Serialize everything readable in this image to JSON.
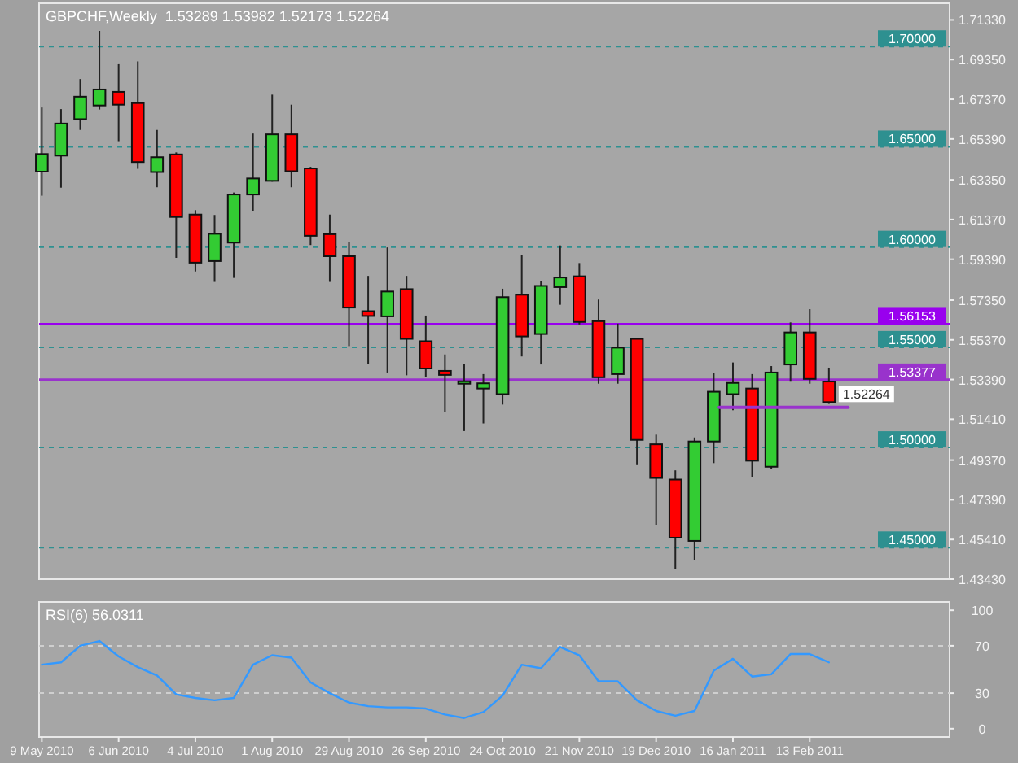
{
  "chart_data": [
    {
      "type": "candlestick",
      "title": "GBPCHF,Weekly  1.53289 1.53982 1.52173 1.52264",
      "x": [
        "2010-05-09",
        "2010-05-16",
        "2010-05-23",
        "2010-05-30",
        "2010-06-06",
        "2010-06-13",
        "2010-06-20",
        "2010-06-27",
        "2010-07-04",
        "2010-07-11",
        "2010-07-18",
        "2010-07-25",
        "2010-08-01",
        "2010-08-08",
        "2010-08-15",
        "2010-08-22",
        "2010-08-29",
        "2010-09-05",
        "2010-09-12",
        "2010-09-19",
        "2010-09-26",
        "2010-10-03",
        "2010-10-10",
        "2010-10-17",
        "2010-10-24",
        "2010-10-31",
        "2010-11-07",
        "2010-11-14",
        "2010-11-21",
        "2010-11-28",
        "2010-12-05",
        "2010-12-12",
        "2010-12-19",
        "2010-12-26",
        "2011-01-02",
        "2011-01-09",
        "2011-01-16",
        "2011-01-23",
        "2011-01-30",
        "2011-02-06",
        "2011-02-13",
        "2011-02-20"
      ],
      "ohlc": [
        [
          1.6376,
          1.6696,
          1.6256,
          1.6464
        ],
        [
          1.6456,
          1.6688,
          1.6296,
          1.6616
        ],
        [
          1.6638,
          1.6838,
          1.6584,
          1.675
        ],
        [
          1.6706,
          1.7078,
          1.6686,
          1.6786
        ],
        [
          1.6774,
          1.6912,
          1.6528,
          1.671
        ],
        [
          1.6718,
          1.6926,
          1.639,
          1.6424
        ],
        [
          1.6374,
          1.6584,
          1.6298,
          1.6448
        ],
        [
          1.6462,
          1.6472,
          1.5946,
          1.615
        ],
        [
          1.6162,
          1.6184,
          1.5878,
          1.5922
        ],
        [
          1.593,
          1.616,
          1.5826,
          1.6066
        ],
        [
          1.6022,
          1.6272,
          1.5846,
          1.6262
        ],
        [
          1.6262,
          1.6566,
          1.6178,
          1.6342
        ],
        [
          1.633,
          1.676,
          1.6326,
          1.6562
        ],
        [
          1.6562,
          1.671,
          1.6298,
          1.6378
        ],
        [
          1.6392,
          1.64,
          1.601,
          1.6056
        ],
        [
          1.6064,
          1.6162,
          1.5826,
          1.5954
        ],
        [
          1.5954,
          1.6024,
          1.5506,
          1.5698
        ],
        [
          1.568,
          1.5856,
          1.5418,
          1.5656
        ],
        [
          1.5654,
          1.5998,
          1.5374,
          1.5778
        ],
        [
          1.579,
          1.5856,
          1.536,
          1.5542
        ],
        [
          1.553,
          1.5658,
          1.5352,
          1.5394
        ],
        [
          1.5382,
          1.5464,
          1.5178,
          1.5362
        ],
        [
          1.5318,
          1.5418,
          1.5082,
          1.533
        ],
        [
          1.5294,
          1.5366,
          1.512,
          1.532
        ],
        [
          1.5266,
          1.5792,
          1.5214,
          1.575
        ],
        [
          1.5762,
          1.596,
          1.5454,
          1.5554
        ],
        [
          1.5566,
          1.5832,
          1.5414,
          1.5806
        ],
        [
          1.58,
          1.6008,
          1.5712,
          1.5848
        ],
        [
          1.5854,
          1.592,
          1.5614,
          1.5626
        ],
        [
          1.563,
          1.5738,
          1.5318,
          1.535
        ],
        [
          1.5366,
          1.5618,
          1.5318,
          1.5498
        ],
        [
          1.5542,
          1.5542,
          1.4912,
          1.5038
        ],
        [
          1.5016,
          1.5064,
          1.4614,
          1.4848
        ],
        [
          1.484,
          1.4886,
          1.4392,
          1.455
        ],
        [
          1.4534,
          1.505,
          1.4438,
          1.503
        ],
        [
          1.503,
          1.537,
          1.4922,
          1.5278
        ],
        [
          1.5266,
          1.5424,
          1.5186,
          1.5322
        ],
        [
          1.5294,
          1.5366,
          1.4854,
          1.4934
        ],
        [
          1.4904,
          1.5406,
          1.4894,
          1.5374
        ],
        [
          1.5414,
          1.5624,
          1.5328,
          1.5574
        ],
        [
          1.5574,
          1.569,
          1.5318,
          1.5342
        ],
        [
          1.53289,
          1.53982,
          1.52173,
          1.52264
        ]
      ],
      "colors": [
        "#33cc33",
        "#33cc33",
        "#33cc33",
        "#33cc33",
        "#ff0000",
        "#ff0000",
        "#33cc33",
        "#ff0000",
        "#ff0000",
        "#33cc33",
        "#33cc33",
        "#33cc33",
        "#33cc33",
        "#ff0000",
        "#ff0000",
        "#ff0000",
        "#ff0000",
        "#ff0000",
        "#33cc33",
        "#ff0000",
        "#ff0000",
        "#ff0000",
        "#33cc33",
        "#33cc33",
        "#33cc33",
        "#ff0000",
        "#33cc33",
        "#33cc33",
        "#ff0000",
        "#ff0000",
        "#33cc33",
        "#ff0000",
        "#ff0000",
        "#ff0000",
        "#33cc33",
        "#33cc33",
        "#33cc33",
        "#ff0000",
        "#33cc33",
        "#33cc33",
        "#ff0000",
        "#ff0000"
      ],
      "series": [
        {
          "type": "line",
          "x": [
            "2011-01-11",
            "2011-02-27"
          ],
          "values": [
            1.52,
            1.52
          ],
          "color": "#9933cc"
        }
      ],
      "xlim": [
        "2010-05-08",
        "2011-04-05"
      ],
      "ylim": [
        1.4343,
        1.7216
      ],
      "yticks": [
        {
          "value": 1.7133,
          "label": "1.71330"
        },
        {
          "value": 1.6935,
          "label": "1.69350"
        },
        {
          "value": 1.6737,
          "label": "1.67370"
        },
        {
          "value": 1.6539,
          "label": "1.65390"
        },
        {
          "value": 1.6335,
          "label": "1.63350"
        },
        {
          "value": 1.6137,
          "label": "1.61370"
        },
        {
          "value": 1.5939,
          "label": "1.59390"
        },
        {
          "value": 1.5735,
          "label": "1.57350"
        },
        {
          "value": 1.5537,
          "label": "1.55370"
        },
        {
          "value": 1.5339,
          "label": "1.53390"
        },
        {
          "value": 1.5141,
          "label": "1.51410"
        },
        {
          "value": 1.4937,
          "label": "1.49370"
        },
        {
          "value": 1.4739,
          "label": "1.47390"
        },
        {
          "value": 1.4541,
          "label": "1.45410"
        },
        {
          "value": 1.4343,
          "label": "1.43430"
        }
      ],
      "tick_labels": "y",
      "ref_lines": [
        {
          "axis": "y",
          "value": 1.7,
          "label": "1.70000",
          "color": "#2e9090",
          "line_style": "dashed"
        },
        {
          "axis": "y",
          "value": 1.65,
          "label": "1.65000",
          "color": "#2e9090",
          "line_style": "dashed"
        },
        {
          "axis": "y",
          "value": 1.6,
          "label": "1.60000",
          "color": "#2e9090",
          "line_style": "dashed"
        },
        {
          "axis": "y",
          "value": 1.55,
          "label": "1.55000",
          "color": "#2e9090",
          "line_style": "dashed"
        },
        {
          "axis": "y",
          "value": 1.5,
          "label": "1.50000",
          "color": "#2e9090",
          "line_style": "dashed"
        },
        {
          "axis": "y",
          "value": 1.45,
          "label": "1.45000",
          "color": "#2e9090",
          "line_style": "dashed"
        },
        {
          "axis": "y",
          "value": 1.56153,
          "label": "1.56153",
          "color": "#9900ee",
          "line_style": "solid"
        },
        {
          "axis": "y",
          "value": 1.53377,
          "label": "1.53377",
          "color": "#9933cc",
          "line_style": "solid"
        }
      ],
      "annotations": [
        {
          "text": "1.52264",
          "x": "2011-02-20",
          "y": 1.52264
        }
      ]
    },
    {
      "type": "line",
      "title": "RSI(6) 56.0311",
      "x": [
        "2010-05-09",
        "2010-05-16",
        "2010-05-23",
        "2010-05-30",
        "2010-06-06",
        "2010-06-13",
        "2010-06-20",
        "2010-06-27",
        "2010-07-04",
        "2010-07-11",
        "2010-07-18",
        "2010-07-25",
        "2010-08-01",
        "2010-08-08",
        "2010-08-15",
        "2010-08-22",
        "2010-08-29",
        "2010-09-05",
        "2010-09-12",
        "2010-09-19",
        "2010-09-26",
        "2010-10-03",
        "2010-10-10",
        "2010-10-17",
        "2010-10-24",
        "2010-10-31",
        "2010-11-07",
        "2010-11-14",
        "2010-11-21",
        "2010-11-28",
        "2010-12-05",
        "2010-12-12",
        "2010-12-19",
        "2010-12-26",
        "2011-01-02",
        "2011-01-09",
        "2011-01-16",
        "2011-01-23",
        "2011-01-30",
        "2011-02-06",
        "2011-02-13",
        "2011-02-20"
      ],
      "series": [
        {
          "color": "#3399ff",
          "values": [
            54,
            56,
            70,
            74,
            61,
            52,
            45,
            29,
            26,
            24,
            26,
            54,
            62,
            60,
            39,
            30,
            22,
            19,
            18,
            18,
            17,
            12,
            9,
            14,
            28,
            54,
            51,
            69,
            62,
            40,
            40,
            24,
            15,
            11,
            15,
            49,
            59,
            44,
            46,
            63,
            63,
            56
          ]
        }
      ],
      "xlim": [
        "2010-05-08",
        "2011-04-05"
      ],
      "xticks": [
        {
          "value": "2010-05-09",
          "label": "9 May 2010"
        },
        {
          "value": "2010-06-06",
          "label": "6 Jun 2010"
        },
        {
          "value": "2010-07-04",
          "label": "4 Jul 2010"
        },
        {
          "value": "2010-08-01",
          "label": "1 Aug 2010"
        },
        {
          "value": "2010-08-29",
          "label": "29 Aug 2010"
        },
        {
          "value": "2010-09-26",
          "label": "26 Sep 2010"
        },
        {
          "value": "2010-10-24",
          "label": "24 Oct 2010"
        },
        {
          "value": "2010-11-21",
          "label": "21 Nov 2010"
        },
        {
          "value": "2010-12-19",
          "label": "19 Dec 2010"
        },
        {
          "value": "2011-01-16",
          "label": "16 Jan 2011"
        },
        {
          "value": "2011-02-13",
          "label": "13 Feb 2011"
        }
      ],
      "ylim": [
        -7,
        107
      ],
      "yticks": [
        0,
        30,
        70,
        100
      ],
      "ref_lines": [
        {
          "axis": "y",
          "value": 30,
          "color": "#cfcfcf",
          "line_style": "dashed"
        },
        {
          "axis": "y",
          "value": 70,
          "color": "#cfcfcf",
          "line_style": "dashed"
        }
      ]
    }
  ]
}
